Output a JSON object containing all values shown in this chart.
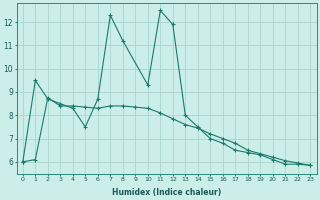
{
  "xlabel": "Humidex (Indice chaleur)",
  "bg_color": "#cceee8",
  "grid_color": "#aad4cc",
  "line_color": "#1a7a6a",
  "xlim": [
    -0.5,
    23.5
  ],
  "ylim": [
    5.5,
    12.8
  ],
  "yticks": [
    6,
    7,
    8,
    9,
    10,
    11,
    12
  ],
  "xticks": [
    0,
    1,
    2,
    3,
    4,
    5,
    6,
    7,
    8,
    9,
    10,
    11,
    12,
    13,
    14,
    15,
    16,
    17,
    18,
    19,
    20,
    21,
    22,
    23
  ],
  "series1_x": [
    0,
    1,
    2,
    3,
    4,
    5,
    6,
    7,
    8,
    10,
    11,
    12,
    13,
    14,
    15,
    16,
    17,
    18,
    19,
    20,
    21,
    22,
    23
  ],
  "series1_y": [
    6.0,
    9.5,
    8.7,
    8.5,
    8.3,
    7.5,
    8.7,
    12.3,
    11.2,
    9.3,
    12.5,
    11.9,
    8.0,
    7.5,
    7.0,
    6.8,
    6.5,
    6.4,
    6.3,
    6.1,
    5.9,
    5.9,
    5.85
  ],
  "series2_x": [
    0,
    1,
    2,
    3,
    4,
    5,
    6,
    7,
    8,
    9,
    10,
    11,
    12,
    13,
    14,
    15,
    16,
    17,
    18,
    19,
    20,
    21,
    22,
    23
  ],
  "series2_y": [
    6.0,
    6.1,
    8.75,
    8.4,
    8.4,
    8.35,
    8.3,
    8.4,
    8.4,
    8.35,
    8.3,
    8.1,
    7.85,
    7.6,
    7.45,
    7.2,
    7.0,
    6.8,
    6.5,
    6.35,
    6.2,
    6.05,
    5.95,
    5.85
  ]
}
